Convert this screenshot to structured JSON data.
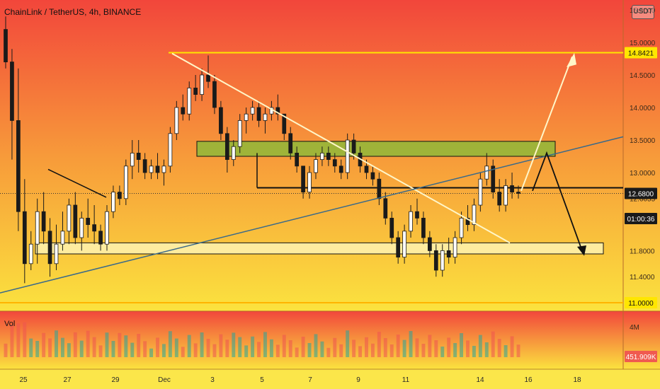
{
  "header": {
    "title": "ChainLink / TetherUS, 4h, BINANCE"
  },
  "currency_button": "USDT",
  "volume_label": "Vol",
  "colors": {
    "up": "#26a69a",
    "down": "#ef5350",
    "gradient_top": "#f2473c",
    "gradient_mid": "#f7a23b",
    "gradient_bottom": "#fbe23e"
  },
  "chart_data": {
    "type": "candlestick",
    "title": "ChainLink / TetherUS, 4h, BINANCE",
    "ylim": [
      11.0,
      15.5
    ],
    "y_tick_labels": [
      "15.5000",
      "15.0000",
      "14.5000",
      "14.0000",
      "13.5000",
      "13.0000",
      "12.6055",
      "11.8000",
      "11.4000",
      "11.0000"
    ],
    "x_tick_labels": [
      "25",
      "27",
      "29",
      "Dec",
      "3",
      "5",
      "7",
      "9",
      "11",
      "14",
      "16",
      "18"
    ],
    "price_tags": [
      {
        "value": "14.8421",
        "style": "yellow"
      },
      {
        "value": "12.6800",
        "style": "dark"
      },
      {
        "value": "01:00:36",
        "style": "dark"
      },
      {
        "value": "11.0000",
        "style": "yellow"
      }
    ],
    "volume_tick_label": "4M",
    "volume_current": "451.909K",
    "levels": {
      "top_line": 14.8421,
      "current_price": 12.68,
      "bottom_line": 11.0
    },
    "zones": [
      {
        "name": "resistance-zone",
        "low": 13.25,
        "high": 13.48,
        "color": "#8fb83a"
      },
      {
        "name": "support-zone",
        "low": 11.75,
        "high": 11.92,
        "color": "#fff2b0"
      }
    ],
    "candles_approx_ohlc": [
      [
        15.2,
        15.4,
        14.6,
        14.7
      ],
      [
        14.7,
        14.9,
        13.2,
        13.8
      ],
      [
        13.8,
        14.6,
        12.1,
        12.4
      ],
      [
        12.4,
        12.9,
        11.3,
        11.6
      ],
      [
        11.6,
        12.1,
        11.5,
        11.9
      ],
      [
        11.9,
        12.6,
        11.6,
        12.4
      ],
      [
        12.4,
        12.7,
        11.9,
        12.1
      ],
      [
        12.1,
        12.3,
        11.4,
        11.6
      ],
      [
        11.6,
        12.2,
        11.5,
        11.9
      ],
      [
        11.9,
        12.4,
        11.8,
        12.1
      ],
      [
        12.1,
        12.6,
        11.9,
        12.5
      ],
      [
        12.5,
        12.7,
        11.9,
        12.0
      ],
      [
        12.0,
        12.4,
        11.8,
        12.3
      ],
      [
        12.3,
        12.6,
        12.0,
        12.2
      ],
      [
        12.2,
        12.5,
        11.9,
        12.1
      ],
      [
        12.1,
        12.2,
        11.8,
        11.9
      ],
      [
        11.9,
        12.5,
        11.8,
        12.4
      ],
      [
        12.4,
        12.8,
        12.3,
        12.7
      ],
      [
        12.7,
        12.8,
        12.5,
        12.6
      ],
      [
        12.6,
        13.2,
        12.5,
        13.1
      ],
      [
        13.1,
        13.5,
        12.9,
        13.3
      ],
      [
        13.3,
        13.5,
        13.0,
        13.2
      ],
      [
        13.2,
        13.3,
        12.9,
        13.0
      ],
      [
        13.0,
        13.2,
        12.9,
        13.1
      ],
      [
        13.1,
        13.3,
        12.9,
        13.0
      ],
      [
        13.0,
        13.2,
        12.8,
        13.1
      ],
      [
        13.1,
        13.7,
        13.0,
        13.6
      ],
      [
        13.6,
        14.1,
        13.5,
        14.0
      ],
      [
        14.0,
        14.2,
        13.8,
        13.9
      ],
      [
        13.9,
        14.4,
        13.8,
        14.3
      ],
      [
        14.3,
        14.5,
        14.1,
        14.2
      ],
      [
        14.2,
        14.6,
        14.1,
        14.5
      ],
      [
        14.5,
        14.8,
        14.3,
        14.4
      ],
      [
        14.4,
        14.5,
        13.9,
        14.0
      ],
      [
        14.0,
        14.1,
        13.5,
        13.6
      ],
      [
        13.6,
        13.7,
        13.0,
        13.2
      ],
      [
        13.2,
        13.5,
        13.1,
        13.4
      ],
      [
        13.4,
        13.9,
        13.3,
        13.8
      ],
      [
        13.8,
        14.0,
        13.6,
        13.9
      ],
      [
        13.9,
        14.1,
        13.8,
        14.0
      ],
      [
        14.0,
        14.1,
        13.7,
        13.8
      ],
      [
        13.8,
        14.0,
        13.6,
        13.9
      ],
      [
        13.9,
        14.1,
        13.8,
        14.0
      ],
      [
        14.0,
        14.2,
        13.8,
        13.9
      ],
      [
        13.9,
        13.9,
        13.5,
        13.6
      ],
      [
        13.6,
        13.7,
        13.2,
        13.3
      ],
      [
        13.3,
        13.4,
        13.0,
        13.1
      ],
      [
        13.1,
        13.1,
        12.6,
        12.7
      ],
      [
        12.7,
        13.1,
        12.6,
        13.0
      ],
      [
        13.0,
        13.3,
        12.9,
        13.2
      ],
      [
        13.2,
        13.4,
        13.1,
        13.3
      ],
      [
        13.3,
        13.4,
        13.1,
        13.2
      ],
      [
        13.2,
        13.3,
        13.0,
        13.1
      ],
      [
        13.1,
        13.2,
        12.9,
        13.0
      ],
      [
        13.0,
        13.6,
        12.9,
        13.5
      ],
      [
        13.5,
        13.6,
        13.2,
        13.3
      ],
      [
        13.3,
        13.4,
        13.0,
        13.1
      ],
      [
        13.1,
        13.2,
        12.9,
        13.0
      ],
      [
        13.0,
        13.1,
        12.8,
        12.9
      ],
      [
        12.9,
        13.0,
        12.5,
        12.6
      ],
      [
        12.6,
        12.7,
        12.2,
        12.3
      ],
      [
        12.3,
        12.4,
        11.9,
        12.0
      ],
      [
        12.0,
        12.1,
        11.6,
        11.7
      ],
      [
        11.7,
        12.2,
        11.6,
        12.1
      ],
      [
        12.1,
        12.5,
        12.0,
        12.4
      ],
      [
        12.4,
        12.6,
        12.2,
        12.3
      ],
      [
        12.3,
        12.4,
        11.9,
        12.0
      ],
      [
        12.0,
        12.1,
        11.7,
        11.8
      ],
      [
        11.8,
        11.9,
        11.4,
        11.5
      ],
      [
        11.5,
        11.9,
        11.4,
        11.8
      ],
      [
        11.8,
        12.0,
        11.6,
        11.7
      ],
      [
        11.7,
        12.1,
        11.6,
        12.0
      ],
      [
        12.0,
        12.4,
        11.9,
        12.3
      ],
      [
        12.3,
        12.5,
        12.1,
        12.2
      ],
      [
        12.2,
        12.6,
        12.1,
        12.5
      ],
      [
        12.5,
        13.0,
        12.4,
        12.9
      ],
      [
        12.9,
        13.3,
        12.8,
        13.1
      ],
      [
        13.1,
        13.2,
        12.6,
        12.7
      ],
      [
        12.7,
        12.9,
        12.4,
        12.5
      ],
      [
        12.5,
        12.9,
        12.4,
        12.8
      ],
      [
        12.8,
        13.0,
        12.6,
        12.7
      ],
      [
        12.7,
        12.8,
        12.6,
        12.68
      ]
    ]
  }
}
